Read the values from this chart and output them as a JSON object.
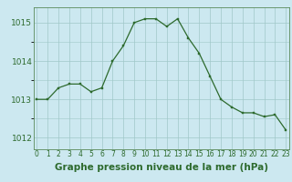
{
  "hours": [
    0,
    1,
    2,
    3,
    4,
    5,
    6,
    7,
    8,
    9,
    10,
    11,
    12,
    13,
    14,
    15,
    16,
    17,
    18,
    19,
    20,
    21,
    22,
    23
  ],
  "pressure": [
    1013.0,
    1013.0,
    1013.3,
    1013.4,
    1013.4,
    1013.2,
    1013.3,
    1014.0,
    1014.4,
    1015.0,
    1015.1,
    1015.1,
    1014.9,
    1015.1,
    1014.6,
    1014.2,
    1013.6,
    1013.0,
    1012.8,
    1012.65,
    1012.65,
    1012.55,
    1012.6,
    1012.2
  ],
  "line_color": "#2d6a2d",
  "marker_color": "#2d6a2d",
  "bg_color": "#cce8f0",
  "grid_color": "#a0c8c8",
  "xlabel": "Graphe pression niveau de la mer (hPa)",
  "ylim": [
    1011.7,
    1015.4
  ],
  "yticks": [
    1012,
    1013,
    1014,
    1015
  ],
  "xticks": [
    0,
    1,
    2,
    3,
    4,
    5,
    6,
    7,
    8,
    9,
    10,
    11,
    12,
    13,
    14,
    15,
    16,
    17,
    18,
    19,
    20,
    21,
    22,
    23
  ],
  "xtick_labels": [
    "0",
    "1",
    "2",
    "3",
    "4",
    "5",
    "6",
    "7",
    "8",
    "9",
    "10",
    "11",
    "12",
    "13",
    "14",
    "15",
    "16",
    "17",
    "18",
    "19",
    "20",
    "21",
    "22",
    "23"
  ],
  "xlabel_fontsize": 7.5,
  "ytick_fontsize": 6.5,
  "xtick_fontsize": 5.5
}
